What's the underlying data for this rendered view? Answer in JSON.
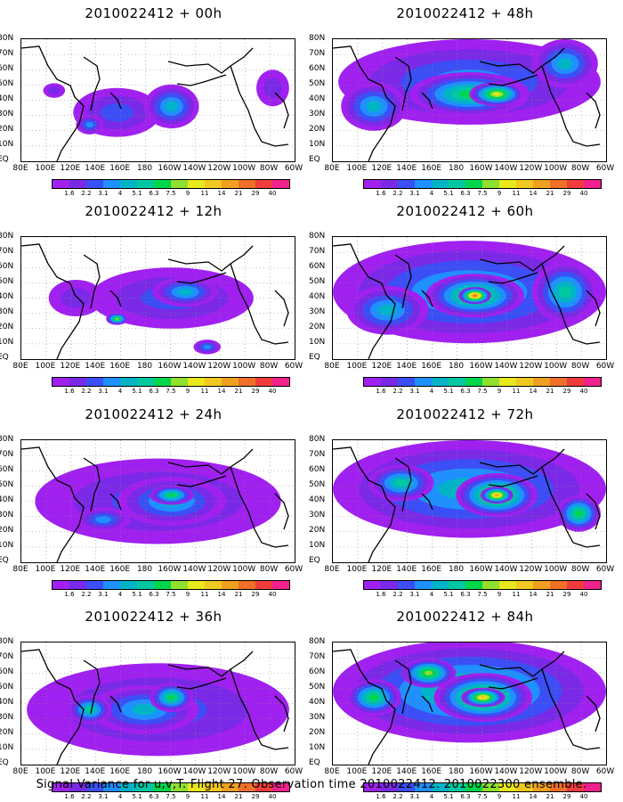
{
  "panels": [
    {
      "title": "2010022412 + 00h"
    },
    {
      "title": "2010022412 + 48h"
    },
    {
      "title": "2010022412 + 12h"
    },
    {
      "title": "2010022412 + 60h"
    },
    {
      "title": "2010022412 + 24h"
    },
    {
      "title": "2010022412 + 72h"
    },
    {
      "title": "2010022412 + 36h"
    },
    {
      "title": "2010022412 + 84h"
    }
  ],
  "lat_labels": [
    "80N",
    "70N",
    "60N",
    "50N",
    "40N",
    "30N",
    "20N",
    "10N",
    "EQ"
  ],
  "lon_labels": [
    "80E",
    "100E",
    "120E",
    "140E",
    "160E",
    "180",
    "160W",
    "140W",
    "120W",
    "100W",
    "80W",
    "60W"
  ],
  "colorbar": {
    "labels": [
      "1.6",
      "2.2",
      "3.1",
      "4",
      "5.1",
      "6.3",
      "7.5",
      "9",
      "11",
      "14",
      "21",
      "29",
      "40"
    ],
    "colors": [
      "#a020f0",
      "#7a2ae6",
      "#3c4ef5",
      "#1e90ff",
      "#00b4c8",
      "#00c8a0",
      "#00d64a",
      "#90e030",
      "#e8e81c",
      "#f0c820",
      "#f0a020",
      "#f07028",
      "#f03c3c",
      "#f0208c"
    ]
  },
  "footer": "Signal Variance for u,v,T. Flight 27. Observation time 2010022412. 2010022300 ensemble."
}
